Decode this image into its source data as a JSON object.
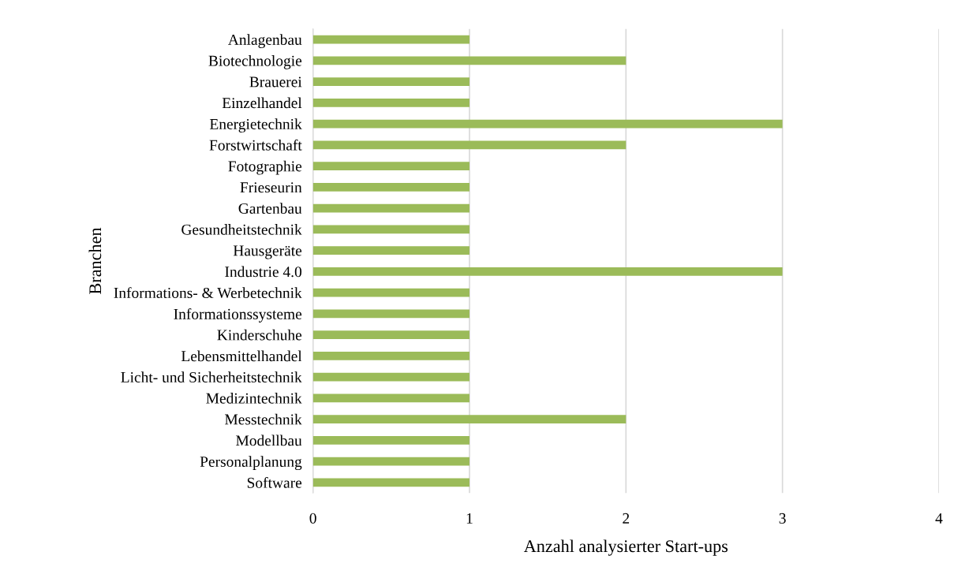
{
  "chart_data": {
    "type": "bar",
    "orientation": "horizontal",
    "xlabel": "Anzahl analysierter Start-ups",
    "ylabel": "Branchen",
    "categories": [
      "Anlagenbau",
      "Biotechnologie",
      "Brauerei",
      "Einzelhandel",
      "Energietechnik",
      "Forstwirtschaft",
      "Fotographie",
      "Frieseurin",
      "Gartenbau",
      "Gesundheitstechnik",
      "Hausgeräte",
      "Industrie 4.0",
      "Informations- & Werbetechnik",
      "Informationssysteme",
      "Kinderschuhe",
      "Lebensmittelhandel",
      "Licht- und Sicherheitstechnik",
      "Medizintechnik",
      "Messtechnik",
      "Modellbau",
      "Personalplanung",
      "Software"
    ],
    "values": [
      1,
      2,
      1,
      1,
      3,
      2,
      1,
      1,
      1,
      1,
      1,
      3,
      1,
      1,
      1,
      1,
      1,
      1,
      2,
      1,
      1,
      1
    ],
    "color": "#9bbb59",
    "xlim": [
      0,
      4
    ],
    "xticks": [
      0,
      1,
      2,
      3,
      4
    ],
    "grid": "x",
    "legend": false
  }
}
